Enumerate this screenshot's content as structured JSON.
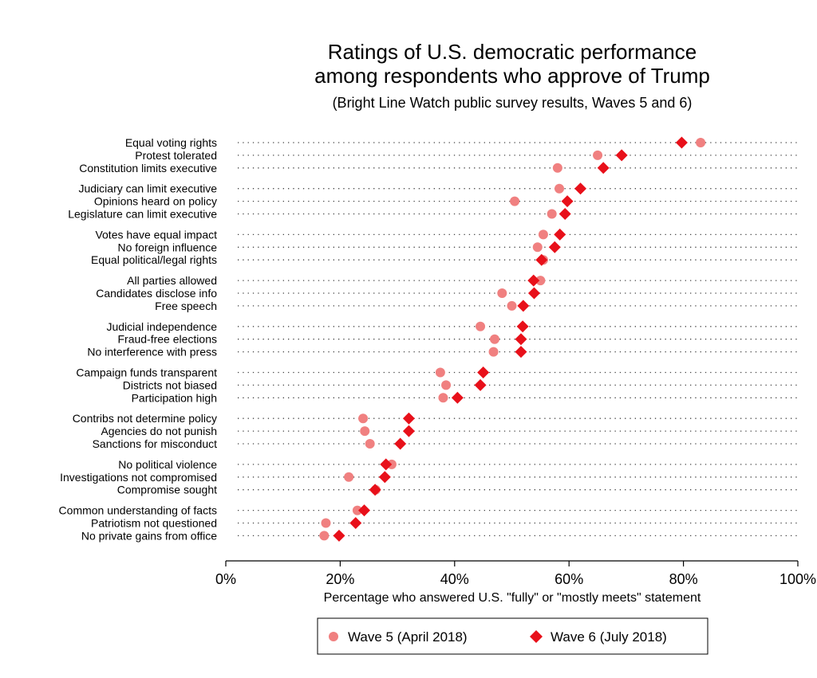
{
  "chart_data": {
    "type": "scatter",
    "title_lines": [
      "Ratings of U.S. democratic performance",
      "among respondents who approve of Trump"
    ],
    "subtitle": "(Bright Line Watch public survey results, Waves 5 and 6)",
    "xlabel": "Percentage who answered U.S. \"fully\" or \"mostly meets\" statement",
    "xlim": [
      0,
      100
    ],
    "x_ticks": [
      0,
      20,
      40,
      60,
      80,
      100
    ],
    "x_tick_labels": [
      "0%",
      "20%",
      "40%",
      "60%",
      "80%",
      "100%"
    ],
    "grid": "dotted horizontal lines per category",
    "legend_position": "bottom",
    "categories": [
      "Equal voting rights",
      "Protest tolerated",
      "Constitution limits executive",
      "Judiciary can limit executive",
      "Opinions heard on policy",
      "Legislature can limit executive",
      "Votes have equal impact",
      "No foreign influence",
      "Equal political/legal rights",
      "All parties allowed",
      "Candidates disclose info",
      "Free speech",
      "Judicial independence",
      "Fraud-free elections",
      "No interference with press",
      "Campaign funds transparent",
      "Districts not biased",
      "Participation high",
      "Contribs not determine policy",
      "Agencies do not punish",
      "Sanctions for misconduct",
      "No political violence",
      "Investigations not compromised",
      "Compromise sought",
      "Common understanding of facts",
      "Patriotism not questioned",
      "No private gains from office"
    ],
    "series": [
      {
        "name": "Wave 5 (April 2018)",
        "marker": "circle",
        "color": "#f08080",
        "values": [
          83,
          65,
          58,
          58.3,
          50.5,
          57,
          55.5,
          54.5,
          55.5,
          55,
          48.3,
          50,
          44.5,
          47,
          46.8,
          37.5,
          38.5,
          38,
          24,
          24.3,
          25.2,
          29,
          21.5,
          26.2,
          23,
          17.5,
          17.2
        ]
      },
      {
        "name": "Wave 6 (July 2018)",
        "marker": "diamond",
        "color": "#e8101a",
        "values": [
          79.7,
          69.2,
          66,
          62,
          59.7,
          59.3,
          58.4,
          57.5,
          55.2,
          53.8,
          53.9,
          52,
          51.9,
          51.6,
          51.6,
          45,
          44.5,
          40.5,
          32,
          32,
          30.5,
          28,
          27.8,
          26.1,
          24.2,
          22.7,
          19.8
        ]
      }
    ]
  }
}
